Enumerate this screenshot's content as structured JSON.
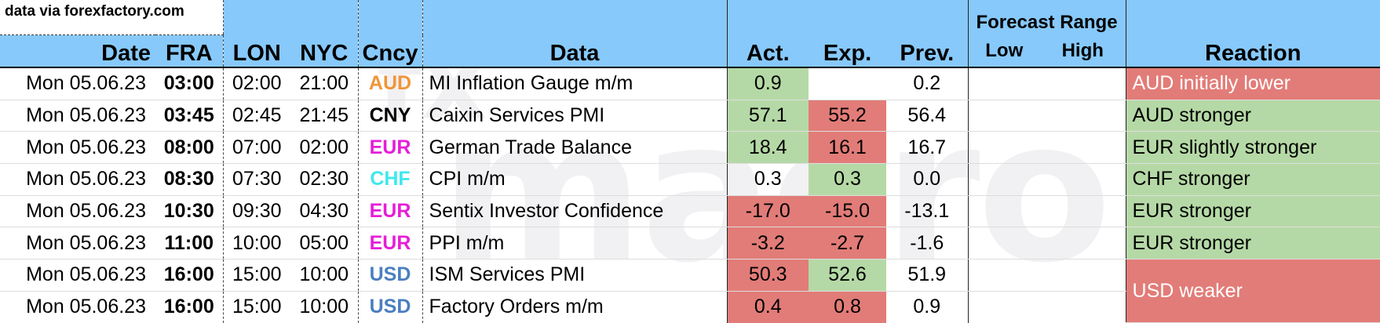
{
  "source": "data via forexfactory.com",
  "watermark": [
    "fx",
    "macro"
  ],
  "headers": {
    "date": "Date",
    "fra": "FRA",
    "lon": "LON",
    "nyc": "NYC",
    "ccy": "Cncy",
    "data": "Data",
    "act": "Act.",
    "exp": "Exp.",
    "prev": "Prev.",
    "forecast_range": "Forecast Range",
    "low": "Low",
    "high": "High",
    "reaction": "Reaction"
  },
  "colors": {
    "header_blue": "#87c9fb",
    "green": "#b5d9a6",
    "red": "#e27c78",
    "AUD": "#f0953a",
    "CNY": "#000000",
    "EUR": "#e61ed8",
    "CHF": "#3ee8ee",
    "USD": "#4a7fc0"
  },
  "rows": [
    {
      "date": "Mon 05.06.23",
      "fra": "03:00",
      "lon": "02:00",
      "nyc": "21:00",
      "ccy": "AUD",
      "data": "MI Inflation Gauge m/m",
      "act": "0.9",
      "exp": "",
      "prev": "0.2",
      "low": "",
      "high": "",
      "reaction": "AUD initially lower"
    },
    {
      "date": "Mon 05.06.23",
      "fra": "03:45",
      "lon": "02:45",
      "nyc": "21:45",
      "ccy": "CNY",
      "data": "Caixin Services PMI",
      "act": "57.1",
      "exp": "55.2",
      "prev": "56.4",
      "low": "",
      "high": "",
      "reaction": "AUD stronger"
    },
    {
      "date": "Mon 05.06.23",
      "fra": "08:00",
      "lon": "07:00",
      "nyc": "02:00",
      "ccy": "EUR",
      "data": "German Trade Balance",
      "act": "18.4",
      "exp": "16.1",
      "prev": "16.7",
      "low": "",
      "high": "",
      "reaction": "EUR slightly stronger"
    },
    {
      "date": "Mon 05.06.23",
      "fra": "08:30",
      "lon": "07:30",
      "nyc": "02:30",
      "ccy": "CHF",
      "data": "CPI m/m",
      "act": "0.3",
      "exp": "0.3",
      "prev": "0.0",
      "low": "",
      "high": "",
      "reaction": "CHF stronger"
    },
    {
      "date": "Mon 05.06.23",
      "fra": "10:30",
      "lon": "09:30",
      "nyc": "04:30",
      "ccy": "EUR",
      "data": "Sentix Investor Confidence",
      "act": "-17.0",
      "exp": "-15.0",
      "prev": "-13.1",
      "low": "",
      "high": "",
      "reaction": "EUR stronger"
    },
    {
      "date": "Mon 05.06.23",
      "fra": "11:00",
      "lon": "10:00",
      "nyc": "05:00",
      "ccy": "EUR",
      "data": "PPI m/m",
      "act": "-3.2",
      "exp": "-2.7",
      "prev": "-1.6",
      "low": "",
      "high": "",
      "reaction": "EUR stronger"
    },
    {
      "date": "Mon 05.06.23",
      "fra": "16:00",
      "lon": "15:00",
      "nyc": "10:00",
      "ccy": "USD",
      "data": "ISM Services PMI",
      "act": "50.3",
      "exp": "52.6",
      "prev": "51.9",
      "low": "",
      "high": "",
      "reaction": "USD weaker"
    },
    {
      "date": "Mon 05.06.23",
      "fra": "16:00",
      "lon": "15:00",
      "nyc": "10:00",
      "ccy": "USD",
      "data": "Factory Orders m/m",
      "act": "0.4",
      "exp": "0.8",
      "prev": "0.9",
      "low": "",
      "high": ""
    }
  ]
}
